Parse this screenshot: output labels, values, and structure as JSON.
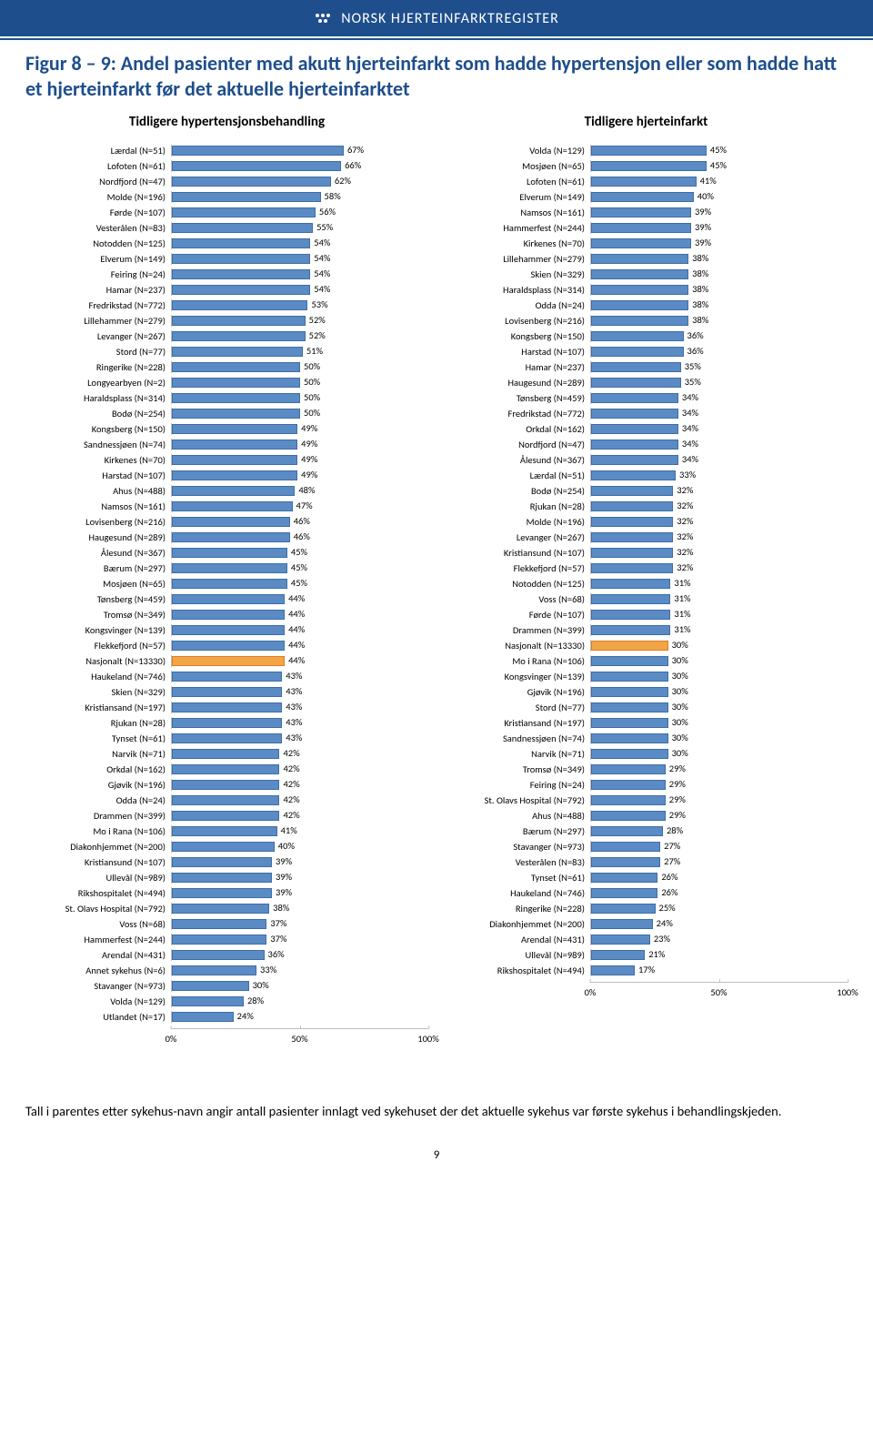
{
  "header": {
    "brand": "NORSK HJERTEINFARKTREGISTER"
  },
  "title": "Figur 8 – 9: Andel pasienter med akutt hjerteinfarkt som hadde hypertensjon eller som hadde hatt et hjerteinfarkt før det aktuelle hjerteinfarktet",
  "chart_style": {
    "type": "horizontal-bar",
    "bar_color": "#5b8bc5",
    "bar_border": "#3d6da5",
    "highlight_color": "#f3a447",
    "highlight_border": "#d98020",
    "xlim_max": 100,
    "xticks": [
      0,
      50,
      100
    ],
    "background": "#ffffff",
    "label_fontsize": 10.5,
    "title_fontsize": 15
  },
  "chart_left": {
    "title": "Tidligere hypertensjonsbehandling",
    "highlight_label": "Nasjonalt (N=13330)",
    "rows": [
      {
        "l": "Lærdal (N=51)",
        "v": 67
      },
      {
        "l": "Lofoten (N=61)",
        "v": 66
      },
      {
        "l": "Nordfjord (N=47)",
        "v": 62
      },
      {
        "l": "Molde (N=196)",
        "v": 58
      },
      {
        "l": "Førde (N=107)",
        "v": 56
      },
      {
        "l": "Vesterålen (N=83)",
        "v": 55
      },
      {
        "l": "Notodden (N=125)",
        "v": 54
      },
      {
        "l": "Elverum (N=149)",
        "v": 54
      },
      {
        "l": "Feiring (N=24)",
        "v": 54
      },
      {
        "l": "Hamar (N=237)",
        "v": 54
      },
      {
        "l": "Fredrikstad (N=772)",
        "v": 53
      },
      {
        "l": "Lillehammer (N=279)",
        "v": 52
      },
      {
        "l": "Levanger (N=267)",
        "v": 52
      },
      {
        "l": "Stord (N=77)",
        "v": 51
      },
      {
        "l": "Ringerike (N=228)",
        "v": 50
      },
      {
        "l": "Longyearbyen (N=2)",
        "v": 50
      },
      {
        "l": "Haraldsplass (N=314)",
        "v": 50
      },
      {
        "l": "Bodø (N=254)",
        "v": 50
      },
      {
        "l": "Kongsberg (N=150)",
        "v": 49
      },
      {
        "l": "Sandnessjøen (N=74)",
        "v": 49
      },
      {
        "l": "Kirkenes (N=70)",
        "v": 49
      },
      {
        "l": "Harstad (N=107)",
        "v": 49
      },
      {
        "l": "Ahus (N=488)",
        "v": 48
      },
      {
        "l": "Namsos (N=161)",
        "v": 47
      },
      {
        "l": "Lovisenberg (N=216)",
        "v": 46
      },
      {
        "l": "Haugesund (N=289)",
        "v": 46
      },
      {
        "l": "Ålesund (N=367)",
        "v": 45
      },
      {
        "l": "Bærum (N=297)",
        "v": 45
      },
      {
        "l": "Mosjøen (N=65)",
        "v": 45
      },
      {
        "l": "Tønsberg (N=459)",
        "v": 44
      },
      {
        "l": "Tromsø (N=349)",
        "v": 44
      },
      {
        "l": "Kongsvinger (N=139)",
        "v": 44
      },
      {
        "l": "Flekkefjord (N=57)",
        "v": 44
      },
      {
        "l": "Nasjonalt (N=13330)",
        "v": 44
      },
      {
        "l": "Haukeland (N=746)",
        "v": 43
      },
      {
        "l": "Skien (N=329)",
        "v": 43
      },
      {
        "l": "Kristiansand (N=197)",
        "v": 43
      },
      {
        "l": "Rjukan (N=28)",
        "v": 43
      },
      {
        "l": "Tynset (N=61)",
        "v": 43
      },
      {
        "l": "Narvik (N=71)",
        "v": 42
      },
      {
        "l": "Orkdal (N=162)",
        "v": 42
      },
      {
        "l": "Gjøvik (N=196)",
        "v": 42
      },
      {
        "l": "Odda (N=24)",
        "v": 42
      },
      {
        "l": "Drammen (N=399)",
        "v": 42
      },
      {
        "l": "Mo i Rana (N=106)",
        "v": 41
      },
      {
        "l": "Diakonhjemmet (N=200)",
        "v": 40
      },
      {
        "l": "Kristiansund (N=107)",
        "v": 39
      },
      {
        "l": "Ullevål (N=989)",
        "v": 39
      },
      {
        "l": "Rikshospitalet (N=494)",
        "v": 39
      },
      {
        "l": "St. Olavs Hospital (N=792)",
        "v": 38
      },
      {
        "l": "Voss (N=68)",
        "v": 37
      },
      {
        "l": "Hammerfest (N=244)",
        "v": 37
      },
      {
        "l": "Arendal (N=431)",
        "v": 36
      },
      {
        "l": "Annet sykehus (N=6)",
        "v": 33
      },
      {
        "l": "Stavanger (N=973)",
        "v": 30
      },
      {
        "l": "Volda (N=129)",
        "v": 28
      },
      {
        "l": "Utlandet (N=17)",
        "v": 24
      }
    ]
  },
  "chart_right": {
    "title": "Tidligere hjerteinfarkt",
    "highlight_label": "Nasjonalt (N=13330)",
    "rows": [
      {
        "l": "Volda (N=129)",
        "v": 45
      },
      {
        "l": "Mosjøen (N=65)",
        "v": 45
      },
      {
        "l": "Lofoten (N=61)",
        "v": 41
      },
      {
        "l": "Elverum (N=149)",
        "v": 40
      },
      {
        "l": "Namsos (N=161)",
        "v": 39
      },
      {
        "l": "Hammerfest (N=244)",
        "v": 39
      },
      {
        "l": "Kirkenes (N=70)",
        "v": 39
      },
      {
        "l": "Lillehammer (N=279)",
        "v": 38
      },
      {
        "l": "Skien (N=329)",
        "v": 38
      },
      {
        "l": "Haraldsplass (N=314)",
        "v": 38
      },
      {
        "l": "Odda (N=24)",
        "v": 38
      },
      {
        "l": "Lovisenberg (N=216)",
        "v": 38
      },
      {
        "l": "Kongsberg (N=150)",
        "v": 36
      },
      {
        "l": "Harstad (N=107)",
        "v": 36
      },
      {
        "l": "Hamar (N=237)",
        "v": 35
      },
      {
        "l": "Haugesund (N=289)",
        "v": 35
      },
      {
        "l": "Tønsberg (N=459)",
        "v": 34
      },
      {
        "l": "Fredrikstad (N=772)",
        "v": 34
      },
      {
        "l": "Orkdal (N=162)",
        "v": 34
      },
      {
        "l": "Nordfjord (N=47)",
        "v": 34
      },
      {
        "l": "Ålesund (N=367)",
        "v": 34
      },
      {
        "l": "Lærdal (N=51)",
        "v": 33
      },
      {
        "l": "Bodø (N=254)",
        "v": 32
      },
      {
        "l": "Rjukan (N=28)",
        "v": 32
      },
      {
        "l": "Molde (N=196)",
        "v": 32
      },
      {
        "l": "Levanger (N=267)",
        "v": 32
      },
      {
        "l": "Kristiansund (N=107)",
        "v": 32
      },
      {
        "l": "Flekkefjord (N=57)",
        "v": 32
      },
      {
        "l": "Notodden (N=125)",
        "v": 31
      },
      {
        "l": "Voss (N=68)",
        "v": 31
      },
      {
        "l": "Førde (N=107)",
        "v": 31
      },
      {
        "l": "Drammen (N=399)",
        "v": 31
      },
      {
        "l": "Nasjonalt (N=13330)",
        "v": 30
      },
      {
        "l": "Mo i Rana (N=106)",
        "v": 30
      },
      {
        "l": "Kongsvinger (N=139)",
        "v": 30
      },
      {
        "l": "Gjøvik (N=196)",
        "v": 30
      },
      {
        "l": "Stord (N=77)",
        "v": 30
      },
      {
        "l": "Kristiansand (N=197)",
        "v": 30
      },
      {
        "l": "Sandnessjøen (N=74)",
        "v": 30
      },
      {
        "l": "Narvik (N=71)",
        "v": 30
      },
      {
        "l": "Tromsø (N=349)",
        "v": 29
      },
      {
        "l": "Feiring (N=24)",
        "v": 29
      },
      {
        "l": "St. Olavs Hospital (N=792)",
        "v": 29
      },
      {
        "l": "Ahus (N=488)",
        "v": 29
      },
      {
        "l": "Bærum (N=297)",
        "v": 28
      },
      {
        "l": "Stavanger (N=973)",
        "v": 27
      },
      {
        "l": "Vesterålen (N=83)",
        "v": 27
      },
      {
        "l": "Tynset (N=61)",
        "v": 26
      },
      {
        "l": "Haukeland (N=746)",
        "v": 26
      },
      {
        "l": "Ringerike (N=228)",
        "v": 25
      },
      {
        "l": "Diakonhjemmet (N=200)",
        "v": 24
      },
      {
        "l": "Arendal (N=431)",
        "v": 23
      },
      {
        "l": "Ullevål (N=989)",
        "v": 21
      },
      {
        "l": "Rikshospitalet (N=494)",
        "v": 17
      }
    ]
  },
  "xtick_labels": [
    "0%",
    "50%",
    "100%"
  ],
  "footnote": "Tall i parentes etter sykehus-navn angir antall pasienter innlagt ved sykehuset der det aktuelle sykehus var første sykehus i behandlingskjeden.",
  "page_number": "9"
}
